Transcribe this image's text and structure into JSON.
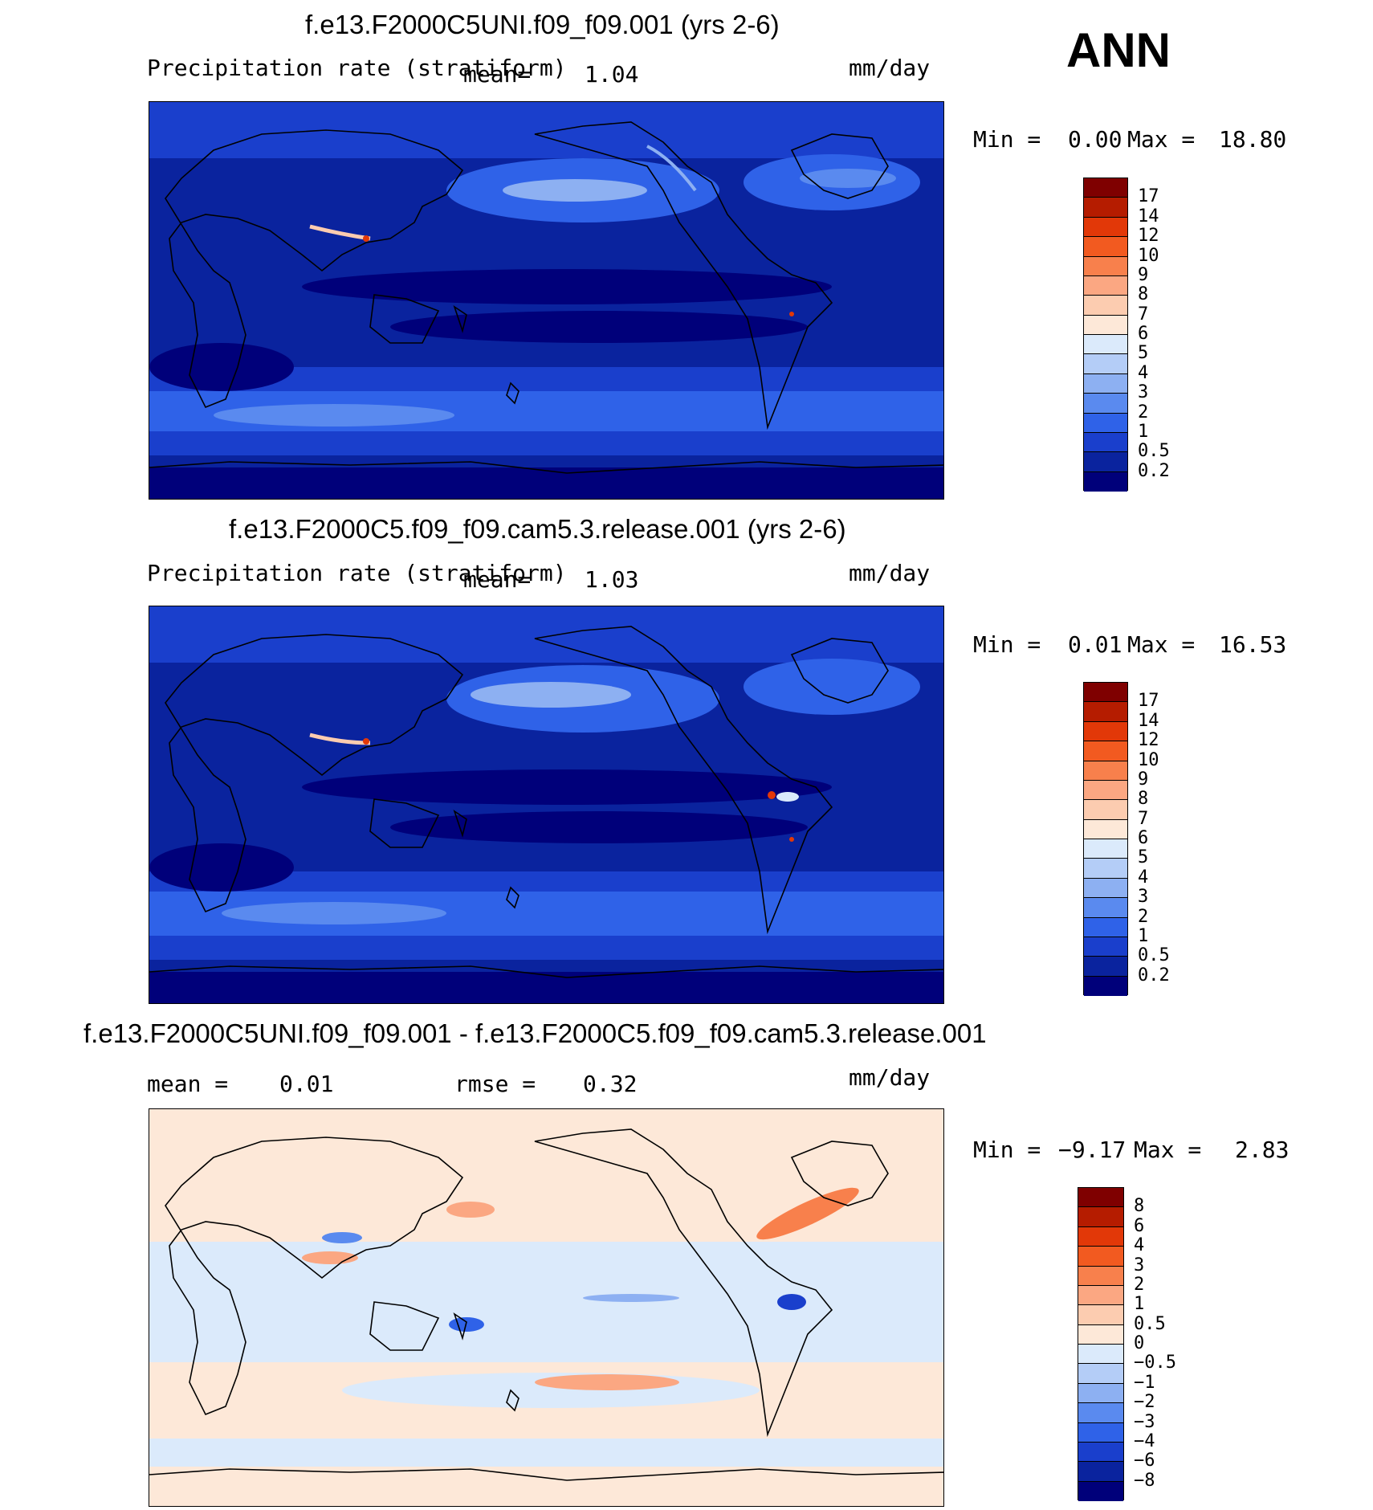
{
  "season": "ANN",
  "units": "mm/day",
  "panels": [
    {
      "title": "f.e13.F2000C5UNI.f09_f09.001 (yrs 2-6)",
      "variable": "Precipitation rate (stratiform)",
      "mean_label": "mean=",
      "mean_value": "1.04",
      "units": "mm/day",
      "min_label": "Min =",
      "min_value": "0.00",
      "max_label": "Max =",
      "max_value": "18.80",
      "colorbar": {
        "labels": [
          "17",
          "14",
          "12",
          "10",
          "9",
          "8",
          "7",
          "6",
          "5",
          "4",
          "3",
          "2",
          "1",
          "0.5",
          "0.2"
        ],
        "colors": [
          "#7f0000",
          "#b51c00",
          "#e23808",
          "#f25a20",
          "#f8804c",
          "#fba782",
          "#fcccb0",
          "#fde8d8",
          "#dbeafb",
          "#b4cdf7",
          "#8db0f2",
          "#5a8aef",
          "#2f62e8",
          "#1a3fcc",
          "#0a239e",
          "#00007a"
        ]
      }
    },
    {
      "title": "f.e13.F2000C5.f09_f09.cam5.3.release.001 (yrs 2-6)",
      "variable": "Precipitation rate (stratiform)",
      "mean_label": "mean=",
      "mean_value": "1.03",
      "units": "mm/day",
      "min_label": "Min =",
      "min_value": "0.01",
      "max_label": "Max =",
      "max_value": "16.53",
      "colorbar": {
        "labels": [
          "17",
          "14",
          "12",
          "10",
          "9",
          "8",
          "7",
          "6",
          "5",
          "4",
          "3",
          "2",
          "1",
          "0.5",
          "0.2"
        ],
        "colors": [
          "#7f0000",
          "#b51c00",
          "#e23808",
          "#f25a20",
          "#f8804c",
          "#fba782",
          "#fcccb0",
          "#fde8d8",
          "#dbeafb",
          "#b4cdf7",
          "#8db0f2",
          "#5a8aef",
          "#2f62e8",
          "#1a3fcc",
          "#0a239e",
          "#00007a"
        ]
      }
    },
    {
      "title": "f.e13.F2000C5UNI.f09_f09.001 - f.e13.F2000C5.f09_f09.cam5.3.release.001",
      "mean_label": "mean =",
      "mean_value": "0.01",
      "rmse_label": "rmse =",
      "rmse_value": "0.32",
      "units": "mm/day",
      "min_label": "Min =",
      "min_value": "−9.17",
      "max_label": "Max =",
      "max_value": "2.83",
      "colorbar": {
        "labels": [
          "8",
          "6",
          "4",
          "3",
          "2",
          "1",
          "0.5",
          "0",
          "−0.5",
          "−1",
          "−2",
          "−3",
          "−4",
          "−6",
          "−8"
        ],
        "colors": [
          "#7f0000",
          "#b51c00",
          "#e23808",
          "#f25a20",
          "#f8804c",
          "#fba782",
          "#fcccb0",
          "#fde8d8",
          "#dbeafb",
          "#b4cdf7",
          "#8db0f2",
          "#5a8aef",
          "#2f62e8",
          "#1a3fcc",
          "#0a239e",
          "#00007a"
        ]
      }
    }
  ],
  "map_colors": {
    "ocean_dark": "#00007a",
    "ocean_mid": "#0a239e",
    "band": "#1a3fcc",
    "band_light": "#2f62e8",
    "storm": "#5a8aef",
    "storm_light": "#8db0f2",
    "peak": "#e23808",
    "diff_base": "#dbeafb",
    "diff_pos": "#fde8d8",
    "diff_pos2": "#f8804c",
    "diff_neg": "#5a8aef",
    "diff_neg2": "#1a3fcc"
  }
}
